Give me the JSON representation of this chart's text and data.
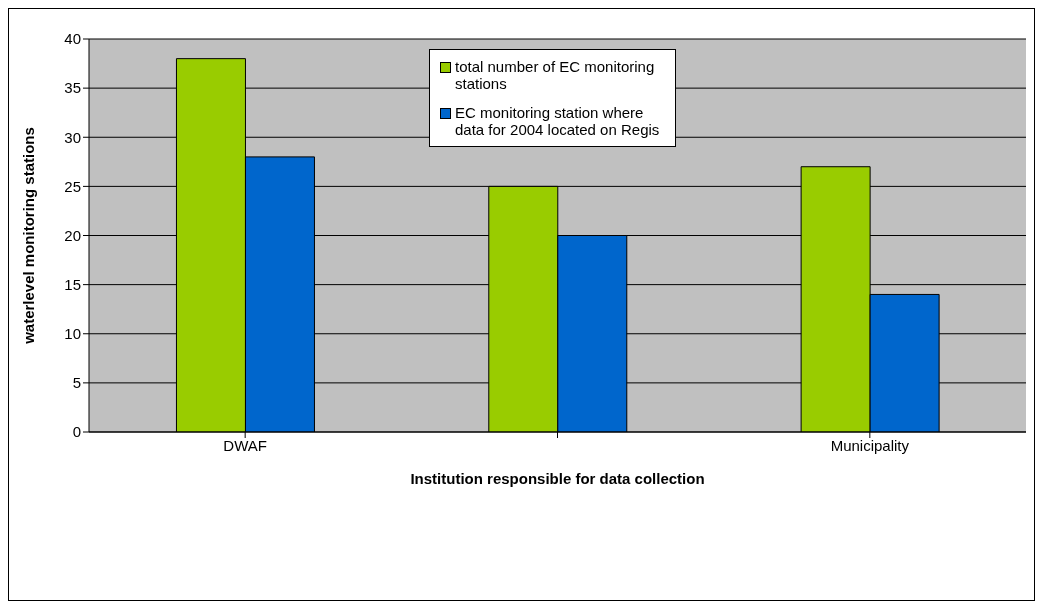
{
  "chart_data": {
    "type": "bar",
    "xlabel": "Institution responsible for data collection",
    "ylabel": "waterlevel monitoring stations",
    "categories": [
      "DWAF",
      null,
      "Municipality"
    ],
    "series": [
      {
        "name": "total number of EC monitoring stations",
        "color": "#99cc00",
        "values": [
          38,
          25,
          27
        ]
      },
      {
        "name": "EC monitoring station where data for 2004 located on Regis",
        "color": "#0066cc",
        "values": [
          28,
          20,
          14
        ]
      }
    ],
    "ylim": [
      0,
      40
    ],
    "yticks": [
      0,
      5,
      10,
      15,
      20,
      25,
      30,
      35,
      40
    ],
    "grid": "y",
    "legend": "top"
  }
}
